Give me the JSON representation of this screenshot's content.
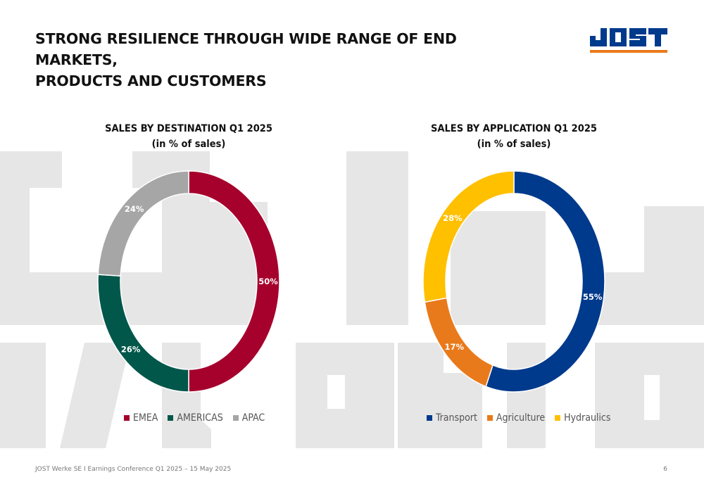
{
  "header": {
    "title_line1": "STRONG RESILIENCE THROUGH WIDE RANGE OF END MARKETS,",
    "title_line2": "PRODUCTS AND CUSTOMERS",
    "logo_text": "JOST",
    "colors": {
      "brand_blue": "#003a8c",
      "brand_orange": "#e97a1b"
    }
  },
  "chart_data": [
    {
      "type": "pie",
      "variant": "donut",
      "title": "SALES BY DESTINATION Q1 2025",
      "subtitle": "(in % of sales)",
      "categories": [
        "EMEA",
        "AMERICAS",
        "APAC"
      ],
      "values": [
        50,
        26,
        24
      ],
      "labels": [
        "50%",
        "26%",
        "24%"
      ],
      "colors": [
        "#a6002c",
        "#00574a",
        "#a6a6a6"
      ],
      "legend_position": "bottom"
    },
    {
      "type": "pie",
      "variant": "donut",
      "title": "SALES BY APPLICATION Q1 2025",
      "subtitle": "(in % of sales)",
      "categories": [
        "Transport",
        "Agriculture",
        "Hydraulics"
      ],
      "values": [
        55,
        17,
        28
      ],
      "labels": [
        "55%",
        "17%",
        "28%"
      ],
      "colors": [
        "#003a8c",
        "#e97a1b",
        "#ffc000"
      ],
      "legend_position": "bottom"
    }
  ],
  "footer": {
    "text": "JOST Werke SE  I  Earnings Conference Q1 2025 – 15 May 2025",
    "page_number": "6"
  }
}
